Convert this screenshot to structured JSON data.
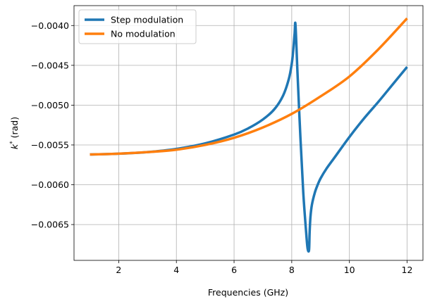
{
  "chart_data": {
    "type": "line",
    "title": "",
    "xlabel": "Frequencies (GHz)",
    "ylabel": "k* (rad)",
    "ylabel_base": "k",
    "ylabel_sup": "*",
    "ylabel_unit": "(rad)",
    "xlim": [
      0.45,
      12.55
    ],
    "ylim": [
      -0.00695,
      -0.00375
    ],
    "xticks": [
      2,
      4,
      6,
      8,
      10,
      12
    ],
    "xtick_labels": [
      "2",
      "4",
      "6",
      "8",
      "10",
      "12"
    ],
    "yticks": [
      -0.004,
      -0.0045,
      -0.005,
      -0.0055,
      -0.006,
      -0.0065
    ],
    "ytick_labels": [
      "−0.0040",
      "−0.0045",
      "−0.0050",
      "−0.0055",
      "−0.0060",
      "−0.0065"
    ],
    "grid": true,
    "legend_position": "top-left",
    "series": [
      {
        "name": "Step modulation",
        "color": "#1f77b4",
        "x": [
          1.0,
          2.0,
          3.0,
          4.0,
          5.0,
          6.0,
          6.5,
          7.0,
          7.4,
          7.7,
          7.9,
          8.0,
          8.05,
          8.1,
          8.13,
          8.2,
          8.3,
          8.4,
          8.5,
          8.55,
          8.6,
          8.62,
          8.65,
          8.7,
          8.8,
          8.9,
          9.0,
          9.2,
          9.5,
          10.0,
          10.5,
          11.0,
          11.5,
          12.0
        ],
        "y": [
          -0.00562,
          -0.00561,
          -0.00559,
          -0.00555,
          -0.00548,
          -0.00537,
          -0.00529,
          -0.00518,
          -0.00505,
          -0.00488,
          -0.00467,
          -0.00448,
          -0.00432,
          -0.0041,
          -0.00399,
          -0.0046,
          -0.0054,
          -0.0061,
          -0.0066,
          -0.0068,
          -0.00682,
          -0.0066,
          -0.0064,
          -0.00625,
          -0.0061,
          -0.006,
          -0.00592,
          -0.0058,
          -0.00565,
          -0.0054,
          -0.00517,
          -0.00496,
          -0.00474,
          -0.00452
        ]
      },
      {
        "name": "No modulation",
        "color": "#ff7f0e",
        "x": [
          1.0,
          2.0,
          3.0,
          4.0,
          5.0,
          6.0,
          7.0,
          8.0,
          9.0,
          10.0,
          11.0,
          12.0
        ],
        "y": [
          -0.00562,
          -0.00561,
          -0.00559,
          -0.00556,
          -0.0055,
          -0.00541,
          -0.00528,
          -0.00511,
          -0.00489,
          -0.00464,
          -0.0043,
          -0.00391
        ]
      }
    ]
  }
}
